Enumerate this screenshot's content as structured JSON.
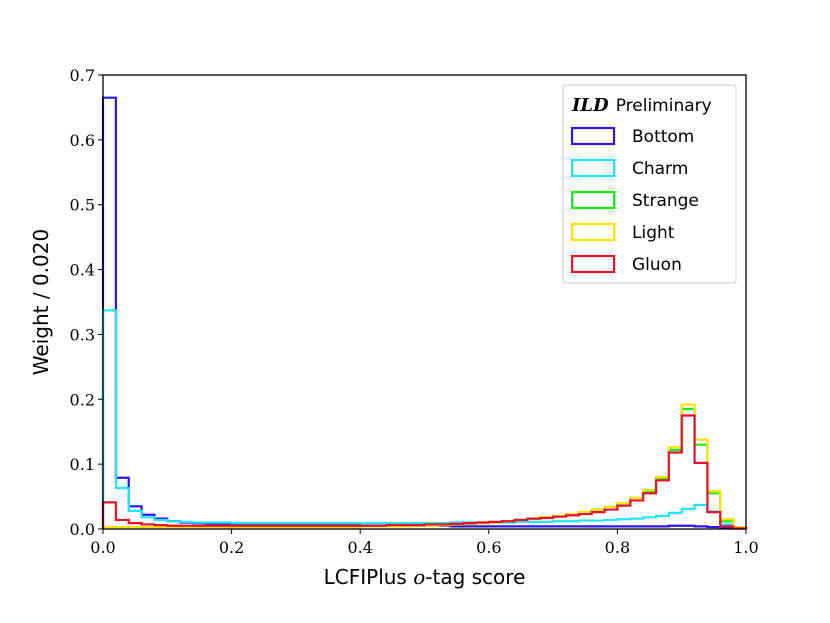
{
  "chart_data": {
    "type": "histogram-step",
    "xlabel_pre": "LCFIPlus ",
    "xlabel_math": "o",
    "xlabel_post": "-tag score",
    "ylabel": "Weight / 0.020",
    "xlim": [
      0.0,
      1.0
    ],
    "ylim": [
      0.0,
      0.7
    ],
    "bin_width": 0.02,
    "x_ticks": [
      "0.0",
      "0.2",
      "0.4",
      "0.6",
      "0.8",
      "1.0"
    ],
    "y_ticks": [
      "0.0",
      "0.1",
      "0.2",
      "0.3",
      "0.4",
      "0.5",
      "0.6",
      "0.7"
    ],
    "legend_title_bold": "ILD",
    "legend_title_rest": "Preliminary",
    "legend_position": "top-right",
    "series": [
      {
        "name": "Bottom",
        "color": "#2b16e6",
        "values": [
          0.665,
          0.079,
          0.035,
          0.022,
          0.016,
          0.012,
          0.01,
          0.009,
          0.008,
          0.008,
          0.007,
          0.007,
          0.007,
          0.007,
          0.006,
          0.006,
          0.006,
          0.006,
          0.006,
          0.006,
          0.005,
          0.005,
          0.005,
          0.005,
          0.005,
          0.005,
          0.005,
          0.004,
          0.004,
          0.004,
          0.004,
          0.004,
          0.004,
          0.004,
          0.004,
          0.004,
          0.004,
          0.004,
          0.004,
          0.004,
          0.004,
          0.004,
          0.004,
          0.004,
          0.005,
          0.005,
          0.004,
          0.003,
          0.002,
          0.001
        ]
      },
      {
        "name": "Charm",
        "color": "#22e5f5",
        "values": [
          0.337,
          0.063,
          0.028,
          0.018,
          0.014,
          0.012,
          0.011,
          0.01,
          0.01,
          0.01,
          0.009,
          0.009,
          0.009,
          0.009,
          0.009,
          0.009,
          0.009,
          0.009,
          0.009,
          0.009,
          0.009,
          0.009,
          0.009,
          0.009,
          0.009,
          0.009,
          0.009,
          0.01,
          0.01,
          0.01,
          0.01,
          0.01,
          0.011,
          0.011,
          0.011,
          0.012,
          0.012,
          0.013,
          0.013,
          0.014,
          0.015,
          0.016,
          0.018,
          0.02,
          0.025,
          0.031,
          0.037,
          0.027,
          0.007,
          0.001
        ]
      },
      {
        "name": "Strange",
        "color": "#1ee61e",
        "values": [
          0.003,
          0.003,
          0.003,
          0.003,
          0.003,
          0.003,
          0.003,
          0.003,
          0.003,
          0.003,
          0.003,
          0.003,
          0.003,
          0.003,
          0.003,
          0.003,
          0.003,
          0.003,
          0.003,
          0.003,
          0.004,
          0.004,
          0.004,
          0.004,
          0.005,
          0.005,
          0.006,
          0.007,
          0.008,
          0.009,
          0.01,
          0.012,
          0.014,
          0.016,
          0.018,
          0.02,
          0.023,
          0.026,
          0.03,
          0.034,
          0.04,
          0.048,
          0.058,
          0.078,
          0.122,
          0.185,
          0.13,
          0.055,
          0.012,
          0.002
        ]
      },
      {
        "name": "Light",
        "color": "#f7e400",
        "values": [
          0.003,
          0.003,
          0.003,
          0.003,
          0.003,
          0.003,
          0.003,
          0.003,
          0.003,
          0.003,
          0.003,
          0.003,
          0.003,
          0.003,
          0.003,
          0.003,
          0.003,
          0.003,
          0.003,
          0.003,
          0.004,
          0.004,
          0.004,
          0.004,
          0.005,
          0.005,
          0.006,
          0.007,
          0.008,
          0.009,
          0.01,
          0.012,
          0.014,
          0.016,
          0.018,
          0.02,
          0.023,
          0.026,
          0.03,
          0.034,
          0.04,
          0.048,
          0.06,
          0.08,
          0.126,
          0.192,
          0.138,
          0.058,
          0.015,
          0.003
        ]
      },
      {
        "name": "Gluon",
        "color": "#e8112d",
        "values": [
          0.041,
          0.014,
          0.009,
          0.007,
          0.006,
          0.005,
          0.005,
          0.005,
          0.005,
          0.005,
          0.005,
          0.005,
          0.005,
          0.005,
          0.005,
          0.005,
          0.005,
          0.005,
          0.005,
          0.005,
          0.005,
          0.005,
          0.006,
          0.006,
          0.006,
          0.007,
          0.007,
          0.008,
          0.009,
          0.01,
          0.011,
          0.012,
          0.014,
          0.016,
          0.017,
          0.019,
          0.021,
          0.023,
          0.026,
          0.03,
          0.036,
          0.044,
          0.055,
          0.075,
          0.118,
          0.175,
          0.102,
          0.026,
          0.004,
          0.001
        ]
      }
    ]
  }
}
